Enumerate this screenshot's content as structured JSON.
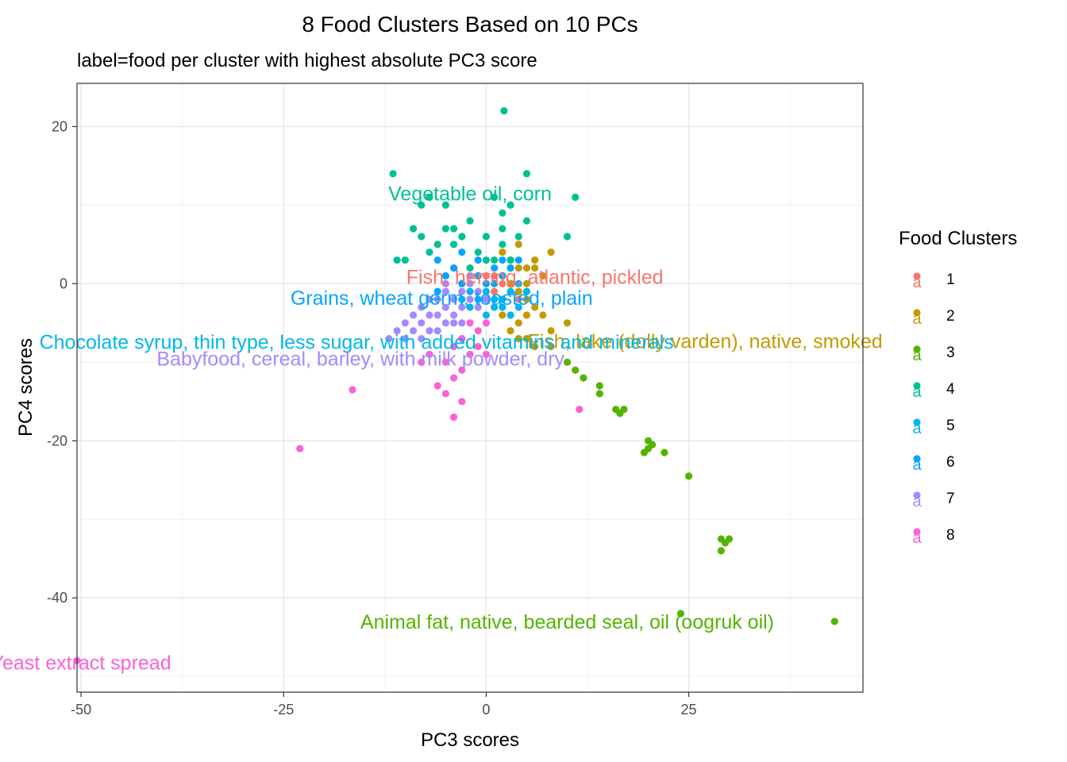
{
  "chart_data": {
    "type": "scatter",
    "title": "8 Food Clusters Based on 10 PCs",
    "subtitle": "label=food per cluster with highest absolute PC3 score",
    "xlabel": "PC3 scores",
    "ylabel": "PC4 scores",
    "xlim": [
      -50.5,
      46.5
    ],
    "ylim": [
      -52,
      25.5
    ],
    "x_ticks": [
      -50,
      -25,
      0,
      25
    ],
    "y_ticks": [
      20,
      0,
      -20,
      -40
    ],
    "grid": true,
    "legend": {
      "title": "Food Clusters",
      "placement": "right",
      "key_glyph": "a",
      "entries": [
        "1",
        "2",
        "3",
        "4",
        "5",
        "6",
        "7",
        "8"
      ]
    },
    "series": [
      {
        "name": "1",
        "color": "#F8766D",
        "points": [
          [
            -1,
            -1
          ],
          [
            0,
            0
          ],
          [
            1,
            -1
          ],
          [
            2,
            0
          ],
          [
            3,
            -1
          ],
          [
            -2,
            -2
          ],
          [
            0,
            -2
          ],
          [
            2,
            -2
          ],
          [
            4,
            -2
          ],
          [
            1,
            1
          ],
          [
            -1,
            1
          ],
          [
            3,
            0
          ],
          [
            5,
            -1
          ],
          [
            -3,
            0
          ],
          [
            0,
            1
          ],
          [
            2,
            1
          ]
        ],
        "label": {
          "text": "Fish, herring, atlantic, pickled",
          "x": 6.0,
          "y": 0.9
        }
      },
      {
        "name": "2",
        "color": "#C49A00",
        "points": [
          [
            2,
            4
          ],
          [
            3,
            3
          ],
          [
            4,
            5
          ],
          [
            5,
            2
          ],
          [
            6,
            3
          ],
          [
            7,
            1
          ],
          [
            8,
            4
          ],
          [
            3,
            0
          ],
          [
            4,
            -1
          ],
          [
            5,
            -2
          ],
          [
            6,
            -3
          ],
          [
            7,
            -4
          ],
          [
            2,
            -4
          ],
          [
            4,
            -5
          ],
          [
            3,
            -6
          ],
          [
            5,
            -7
          ],
          [
            8,
            -6
          ],
          [
            10,
            -5
          ],
          [
            8,
            -8
          ],
          [
            6,
            -8
          ],
          [
            4,
            -7
          ],
          [
            6,
            2
          ],
          [
            5,
            0
          ],
          [
            4,
            2
          ],
          [
            3,
            2
          ],
          [
            2,
            1
          ],
          [
            5,
            -4
          ]
        ],
        "label": {
          "text": "Fish, lake (dolly varden), native, smoked",
          "x": 27.0,
          "y": -7.3
        }
      },
      {
        "name": "3",
        "color": "#53B400",
        "points": [
          [
            10,
            -10
          ],
          [
            11,
            -11
          ],
          [
            12,
            -12
          ],
          [
            14,
            -13
          ],
          [
            14,
            -14
          ],
          [
            16,
            -16
          ],
          [
            16.5,
            -16.5
          ],
          [
            17,
            -16
          ],
          [
            20,
            -20
          ],
          [
            20.5,
            -20.5
          ],
          [
            20,
            -21
          ],
          [
            19.5,
            -21.5
          ],
          [
            22,
            -21.5
          ],
          [
            25,
            -24.5
          ],
          [
            29,
            -32.5
          ],
          [
            29.5,
            -33
          ],
          [
            30,
            -32.5
          ],
          [
            29,
            -34
          ],
          [
            24,
            -42
          ],
          [
            43,
            -43
          ]
        ],
        "label": {
          "text": "Animal fat, native, bearded seal, oil (oogruk oil)",
          "x": 10.0,
          "y": -43.0
        }
      },
      {
        "name": "4",
        "color": "#00C094",
        "points": [
          [
            2.2,
            22
          ],
          [
            -11.5,
            14
          ],
          [
            5,
            14
          ],
          [
            -8,
            10
          ],
          [
            -7,
            11
          ],
          [
            -5,
            10
          ],
          [
            1,
            11
          ],
          [
            2,
            9
          ],
          [
            3,
            10
          ],
          [
            5,
            8
          ],
          [
            -9,
            7
          ],
          [
            -8,
            6
          ],
          [
            -5,
            7
          ],
          [
            -4,
            7
          ],
          [
            -2,
            8
          ],
          [
            0,
            6
          ],
          [
            2,
            5
          ],
          [
            4,
            6
          ],
          [
            -6,
            5
          ],
          [
            -3,
            6
          ],
          [
            -1,
            4
          ],
          [
            1,
            3
          ],
          [
            -10,
            3
          ],
          [
            -11,
            3
          ],
          [
            -7,
            4
          ],
          [
            -4,
            5
          ],
          [
            3,
            3
          ],
          [
            -2,
            2
          ],
          [
            0,
            3
          ],
          [
            2,
            7
          ],
          [
            11,
            11
          ],
          [
            10,
            6
          ]
        ],
        "label": {
          "text": "Vegetable oil, corn",
          "x": -2.0,
          "y": 11.5
        }
      },
      {
        "name": "5",
        "color": "#00B6EB",
        "points": [
          [
            -2,
            -3
          ],
          [
            -1,
            -2
          ],
          [
            0,
            -4
          ],
          [
            1,
            -3
          ],
          [
            2,
            -2
          ],
          [
            3,
            -4
          ],
          [
            4,
            -3
          ],
          [
            -3,
            -2
          ],
          [
            -2,
            -1
          ],
          [
            0,
            -1
          ],
          [
            1,
            -2
          ],
          [
            2,
            -3
          ],
          [
            3,
            -1
          ],
          [
            4,
            0
          ],
          [
            5,
            -1
          ]
        ],
        "label": {
          "text": "Chocolate syrup, thin type, less sugar, with added vitamins and minerals",
          "x": -16.0,
          "y": -7.4
        }
      },
      {
        "name": "6",
        "color": "#06A4FF",
        "points": [
          [
            -6,
            3
          ],
          [
            -4,
            2
          ],
          [
            -3,
            4
          ],
          [
            -2,
            1
          ],
          [
            -1,
            3
          ],
          [
            0,
            0
          ],
          [
            1,
            2
          ],
          [
            2,
            1
          ],
          [
            3,
            2
          ],
          [
            4,
            3
          ],
          [
            -5,
            1
          ],
          [
            -3,
            0
          ],
          [
            -1,
            1
          ],
          [
            1,
            0
          ],
          [
            2,
            3
          ],
          [
            -6,
            -1
          ]
        ],
        "label": {
          "text": "Grains, wheat germ, toasted, plain",
          "x": -5.5,
          "y": -1.8
        }
      },
      {
        "name": "7",
        "color": "#A58AFF",
        "points": [
          [
            -11,
            -6
          ],
          [
            -10,
            -5
          ],
          [
            -9,
            -4
          ],
          [
            -8,
            -3
          ],
          [
            -7,
            -4
          ],
          [
            -6,
            -2
          ],
          [
            -5,
            -1
          ],
          [
            -4,
            -2
          ],
          [
            -3,
            -1
          ],
          [
            -2,
            0
          ],
          [
            -1,
            -1
          ],
          [
            0,
            -2
          ],
          [
            -9,
            -6
          ],
          [
            -8,
            -5
          ],
          [
            -7,
            -6
          ],
          [
            -6,
            -4
          ],
          [
            -5,
            -3
          ],
          [
            -4,
            -4
          ],
          [
            -3,
            -3
          ],
          [
            -2,
            -2
          ],
          [
            -1,
            -3
          ],
          [
            -10,
            -7
          ],
          [
            -8,
            -7
          ],
          [
            -6,
            -6
          ],
          [
            -4,
            -5
          ],
          [
            -3,
            -5
          ],
          [
            -7,
            -2
          ],
          [
            -5,
            0
          ],
          [
            -2,
            1
          ],
          [
            -12,
            -7
          ],
          [
            -5,
            -5
          ]
        ],
        "label": {
          "text": "Babyfood, cereal, barley, with milk powder, dry",
          "x": -15.5,
          "y": -9.5
        }
      },
      {
        "name": "8",
        "color": "#FB61D7",
        "points": [
          [
            -2,
            -5
          ],
          [
            -1,
            -6
          ],
          [
            0,
            -5
          ],
          [
            -3,
            -7
          ],
          [
            -4,
            -8
          ],
          [
            -2,
            -9
          ],
          [
            -5,
            -10
          ],
          [
            -3,
            -11
          ],
          [
            -4,
            -12
          ],
          [
            -6,
            -13
          ],
          [
            -5,
            -14
          ],
          [
            -4,
            -17
          ],
          [
            -3,
            -15
          ],
          [
            -7,
            -9
          ],
          [
            -8,
            -10
          ],
          [
            -1,
            -8
          ],
          [
            0,
            -9
          ],
          [
            -16.5,
            -13.5
          ],
          [
            -23,
            -21
          ],
          [
            11.5,
            -16
          ],
          [
            -50.5,
            -48
          ]
        ],
        "label": {
          "text": "Yeast extract spread",
          "x": -50.0,
          "y": -48.2
        }
      }
    ]
  }
}
